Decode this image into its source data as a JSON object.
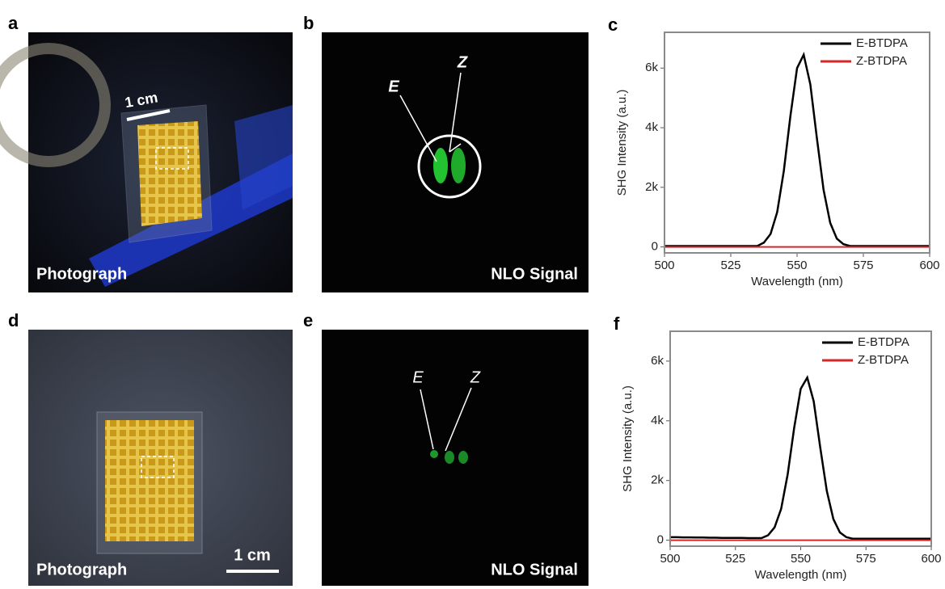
{
  "panels": [
    {
      "label": "a",
      "caption": "Photograph",
      "scale_bar": "1 cm"
    },
    {
      "label": "b",
      "caption": "NLO Signal",
      "markers": [
        "E",
        "Z"
      ]
    },
    {
      "label": "d",
      "caption": "Photograph",
      "scale_bar": "1 cm"
    },
    {
      "label": "e",
      "caption": "NLO Signal",
      "markers": [
        "E",
        "Z"
      ]
    }
  ],
  "chart_data": [
    {
      "type": "line",
      "panel_label": "c",
      "x_label": "Wavelength (nm)",
      "y_label": "SHG Intensity (a.u.)",
      "xlim": [
        500,
        600
      ],
      "xticks": [
        500,
        525,
        550,
        575,
        600
      ],
      "ylim": [
        -200,
        7200
      ],
      "yticks": [
        0,
        {
          "value": 2000,
          "label": "2k"
        },
        {
          "value": 4000,
          "label": "4k"
        },
        {
          "value": 6000,
          "label": "6k"
        }
      ],
      "x": [
        500,
        502.5,
        505,
        507.5,
        510,
        512.5,
        515,
        517.5,
        520,
        522.5,
        525,
        527.5,
        530,
        532.5,
        535,
        537.5,
        540,
        542.5,
        545,
        547.5,
        550,
        552.5,
        555,
        557.5,
        560,
        562.5,
        565,
        567.5,
        570,
        572.5,
        575,
        577.5,
        580,
        582.5,
        585,
        587.5,
        590,
        592.5,
        595,
        597.5,
        600
      ],
      "series": [
        {
          "name": "E-BTDPA",
          "color": "#000000",
          "values": [
            30,
            30,
            30,
            30,
            30,
            30,
            30,
            30,
            30,
            30,
            30,
            30,
            30,
            30,
            30,
            144,
            435,
            1167,
            2545,
            4400,
            6000,
            6450,
            5455,
            3634,
            1915,
            805,
            280,
            94,
            30,
            30,
            30,
            30,
            30,
            30,
            30,
            30,
            30,
            30,
            30,
            30,
            30
          ]
        },
        {
          "name": "Z-BTDPA",
          "color": "#d62728",
          "values": [
            0,
            0,
            0,
            0,
            0,
            0,
            0,
            0,
            0,
            0,
            0,
            0,
            0,
            0,
            0,
            0,
            0,
            0,
            0,
            0,
            0,
            0,
            0,
            0,
            0,
            0,
            0,
            0,
            0,
            0,
            0,
            0,
            0,
            0,
            0,
            0,
            0,
            0,
            0,
            0,
            0
          ]
        }
      ],
      "legend": "upper right"
    },
    {
      "type": "line",
      "panel_label": "f",
      "x_label": "Wavelength (nm)",
      "y_label": "SHG Intensity (a.u.)",
      "xlim": [
        500,
        600
      ],
      "xticks": [
        500,
        525,
        550,
        575,
        600
      ],
      "ylim": [
        -200,
        7000
      ],
      "yticks": [
        0,
        {
          "value": 2000,
          "label": "2k"
        },
        {
          "value": 4000,
          "label": "4k"
        },
        {
          "value": 6000,
          "label": "6k"
        }
      ],
      "x": [
        500,
        502.5,
        505,
        507.5,
        510,
        512.5,
        515,
        517.5,
        520,
        522.5,
        525,
        527.5,
        530,
        532.5,
        535,
        537.5,
        540,
        542.5,
        545,
        547.5,
        550,
        552.5,
        555,
        557.5,
        560,
        562.5,
        565,
        567.5,
        570,
        572.5,
        575,
        577.5,
        580,
        582.5,
        585,
        587.5,
        590,
        592.5,
        595,
        597.5,
        600
      ],
      "series": [
        {
          "name": "E-BTDPA",
          "color": "#000000",
          "values": [
            100,
            100,
            95,
            95,
            90,
            90,
            85,
            85,
            80,
            80,
            75,
            75,
            70,
            70,
            70,
            166,
            432,
            1050,
            2210,
            3760,
            5070,
            5450,
            4650,
            3100,
            1650,
            710,
            260,
            100,
            50,
            50,
            50,
            50,
            50,
            50,
            50,
            50,
            50,
            50,
            50,
            50,
            50
          ]
        },
        {
          "name": "Z-BTDPA",
          "color": "#d62728",
          "values": [
            0,
            0,
            0,
            0,
            0,
            0,
            0,
            0,
            0,
            0,
            0,
            0,
            0,
            0,
            0,
            0,
            0,
            0,
            0,
            0,
            0,
            0,
            0,
            0,
            0,
            0,
            0,
            0,
            0,
            0,
            0,
            0,
            0,
            0,
            0,
            0,
            0,
            0,
            0,
            0,
            0
          ]
        }
      ],
      "legend": "upper right"
    }
  ]
}
